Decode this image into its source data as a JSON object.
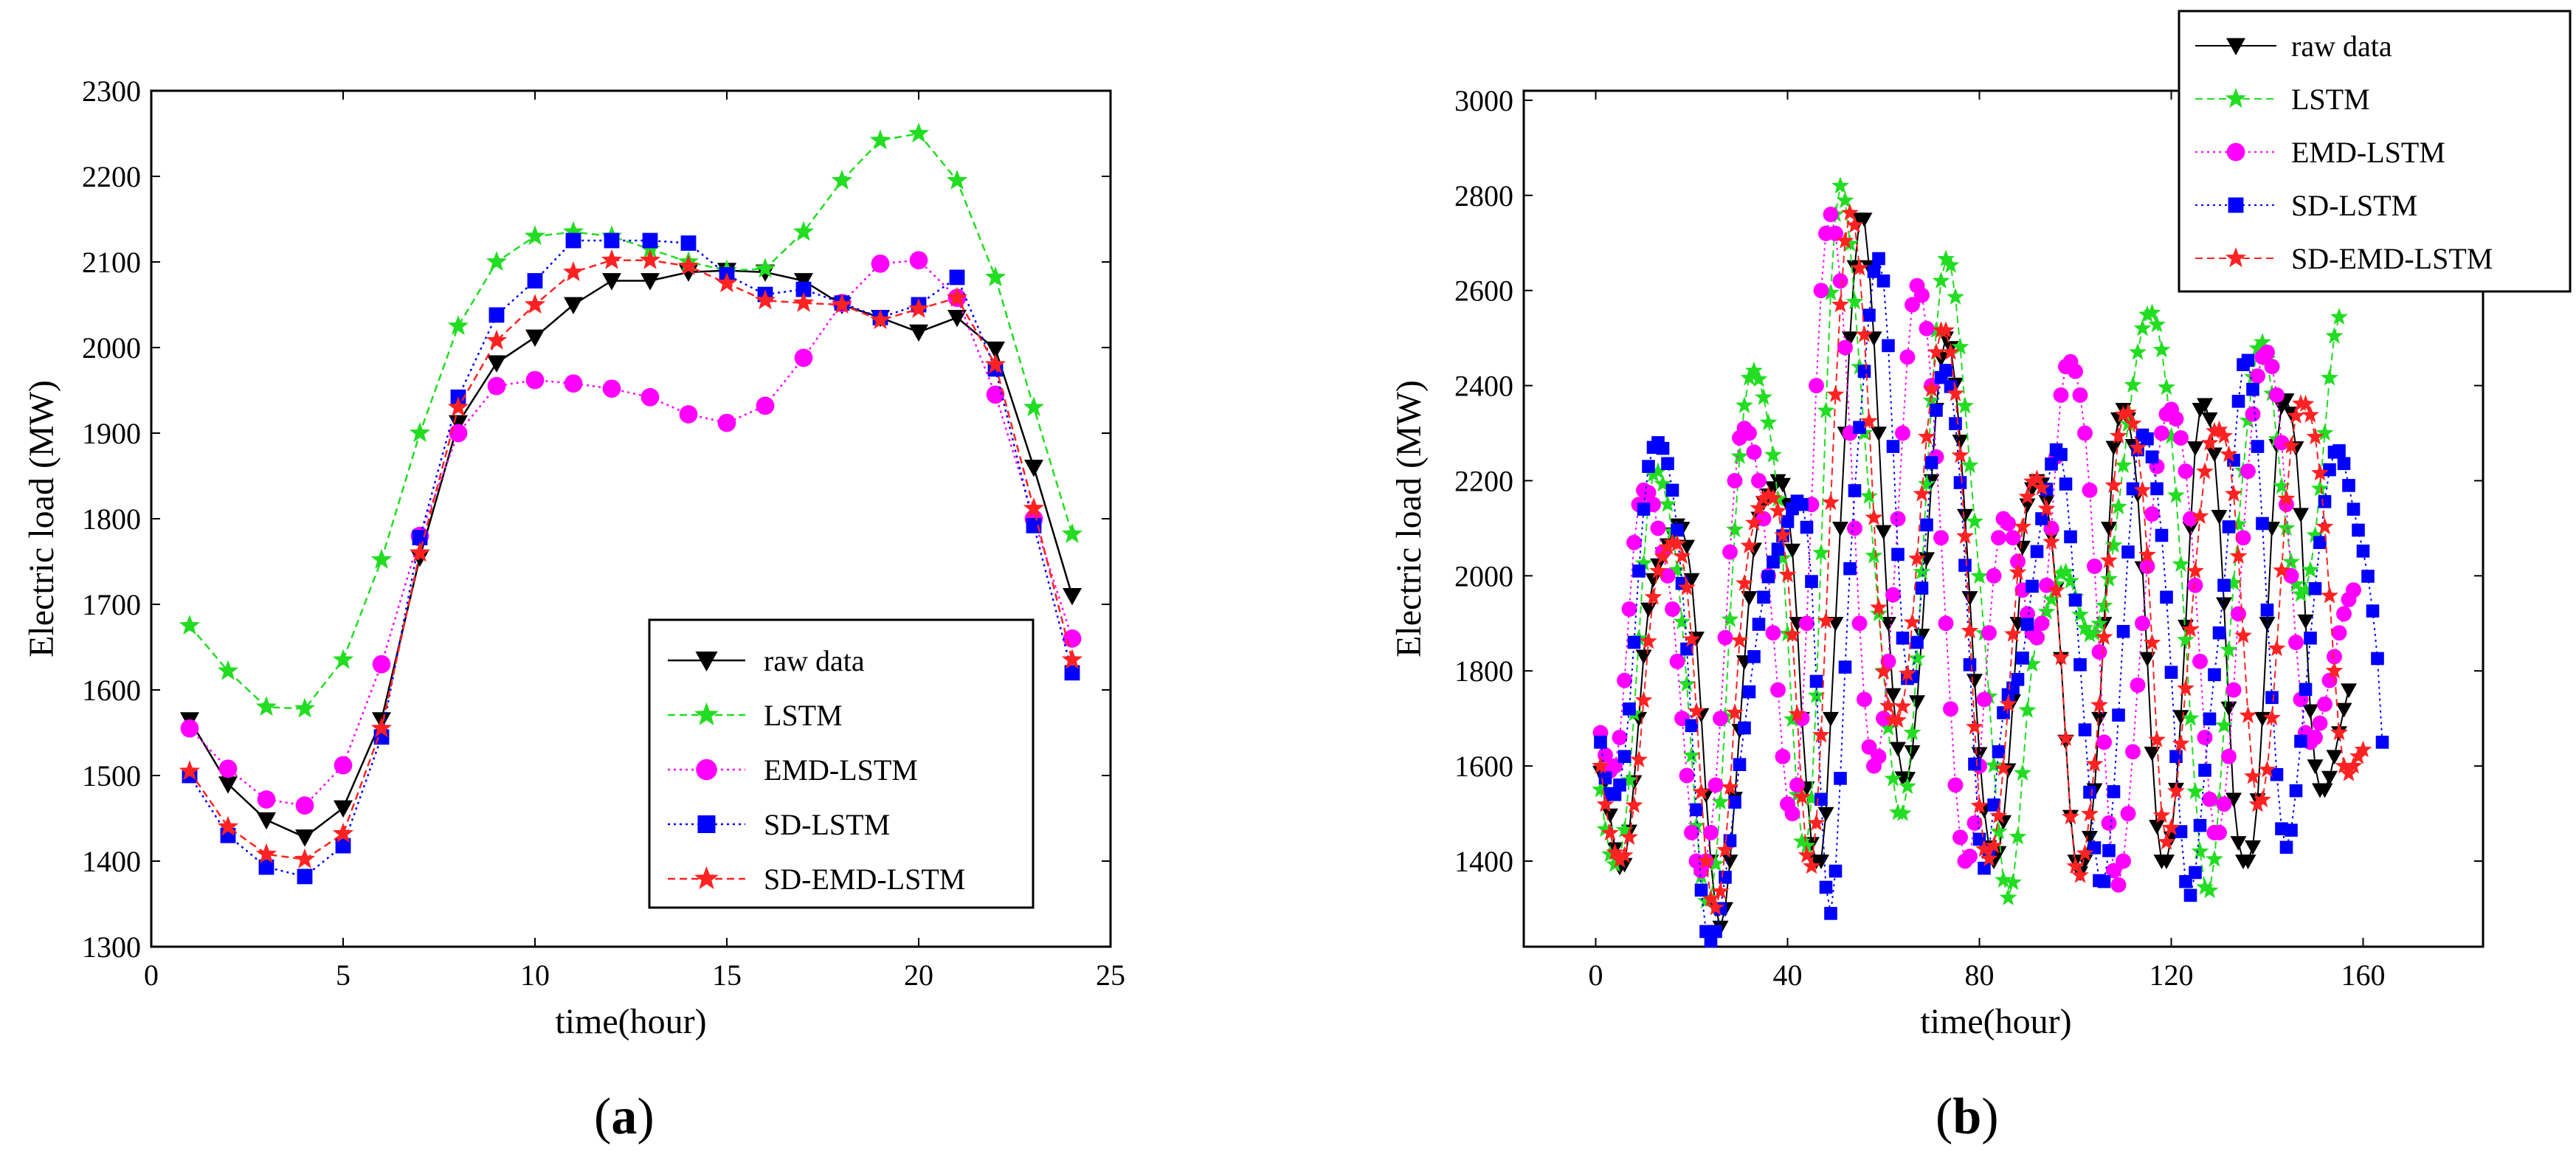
{
  "chart_data": [
    {
      "id": "a",
      "type": "line",
      "panel_label": "(a)",
      "panel_letter": "a",
      "xlabel": "time(hour)",
      "ylabel": "Electric load (MW)",
      "xlim": [
        0,
        25
      ],
      "ylim": [
        1300,
        2300
      ],
      "xticks": [
        0,
        5,
        10,
        15,
        20,
        25
      ],
      "yticks": [
        1300,
        1400,
        1500,
        1600,
        1700,
        1800,
        1900,
        2000,
        2100,
        2200,
        2300
      ],
      "legend_position": "bottom-right",
      "x": [
        1,
        2,
        3,
        4,
        5,
        6,
        7,
        8,
        9,
        10,
        11,
        12,
        13,
        14,
        15,
        16,
        17,
        18,
        19,
        20,
        21,
        22,
        23,
        24
      ],
      "series": [
        {
          "name": "raw data",
          "color": "#000000",
          "marker": "triangle-down",
          "dash": "solid",
          "values": [
            1565,
            1490,
            1448,
            1428,
            1462,
            1565,
            1755,
            1912,
            1982,
            2012,
            2050,
            2078,
            2078,
            2088,
            2090,
            2088,
            2078,
            2050,
            2035,
            2018,
            2035,
            1998,
            1860,
            1710
          ]
        },
        {
          "name": "LSTM",
          "color": "#22dd22",
          "marker": "star",
          "dash": "dashed",
          "values": [
            1675,
            1622,
            1580,
            1578,
            1635,
            1752,
            1900,
            2025,
            2100,
            2130,
            2135,
            2130,
            2115,
            2100,
            2090,
            2092,
            2135,
            2195,
            2242,
            2250,
            2195,
            2082,
            1930,
            1782
          ]
        },
        {
          "name": "EMD-LSTM",
          "color": "#ff00ff",
          "marker": "circle",
          "dash": "dotted",
          "values": [
            1555,
            1508,
            1472,
            1465,
            1512,
            1630,
            1780,
            1900,
            1955,
            1962,
            1958,
            1952,
            1942,
            1922,
            1912,
            1932,
            1988,
            2052,
            2098,
            2102,
            2058,
            1945,
            1800,
            1660
          ]
        },
        {
          "name": "SD-LSTM",
          "color": "#0000ff",
          "marker": "square",
          "dash": "dotted",
          "values": [
            1500,
            1430,
            1393,
            1382,
            1418,
            1545,
            1778,
            1942,
            2038,
            2078,
            2125,
            2125,
            2125,
            2122,
            2085,
            2062,
            2068,
            2052,
            2035,
            2050,
            2082,
            1975,
            1792,
            1620
          ]
        },
        {
          "name": "SD-EMD-LSTM",
          "color": "#ff2222",
          "marker": "star",
          "dash": "dashed",
          "values": [
            1505,
            1440,
            1408,
            1402,
            1432,
            1555,
            1760,
            1930,
            2008,
            2050,
            2088,
            2102,
            2102,
            2095,
            2075,
            2055,
            2052,
            2050,
            2032,
            2045,
            2058,
            1980,
            1812,
            1635
          ]
        }
      ]
    },
    {
      "id": "b",
      "type": "line",
      "panel_label": "(b)",
      "panel_letter": "b",
      "xlabel": "time(hour)",
      "ylabel": "Electric load (MW)",
      "xlim": [
        -15,
        185
      ],
      "ylim": [
        1220,
        3020
      ],
      "xticks": [
        0,
        40,
        80,
        120,
        160
      ],
      "yticks": [
        1400,
        1600,
        1800,
        2000,
        2200,
        2400,
        2600,
        2800,
        3000
      ],
      "legend_position": "top-right",
      "x_start": 1,
      "x_step": 1,
      "series": [
        {
          "name": "raw data",
          "color": "#000000",
          "marker": "triangle-down",
          "dash": "solid",
          "values": [
            1587,
            1567,
            1497,
            1426,
            1387,
            1393,
            1463,
            1567,
            1700,
            1831,
            1930,
            1992,
            2023,
            2046,
            2065,
            2088,
            2107,
            2100,
            2062,
            1992,
            1869,
            1708,
            1539,
            1400,
            1300,
            1261,
            1300,
            1400,
            1532,
            1675,
            1819,
            1954,
            2056,
            2121,
            2154,
            2170,
            2185,
            2200,
            2192,
            2150,
            2054,
            1900,
            1700,
            1554,
            1437,
            1400,
            1400,
            1500,
            1700,
            1900,
            2100,
            2300,
            2500,
            2650,
            2750,
            2750,
            2650,
            2500,
            2300,
            2093,
            1900,
            1750,
            1637,
            1575,
            1574,
            1630,
            1735,
            1875,
            2036,
            2200,
            2350,
            2457,
            2500,
            2480,
            2403,
            2283,
            2127,
            1954,
            1780,
            1626,
            1507,
            1430,
            1400,
            1418,
            1483,
            1592,
            1737,
            1900,
            2060,
            2149,
            2183,
            2200,
            2193,
            2156,
            2083,
            1972,
            1826,
            1652,
            1494,
            1400,
            1375,
            1400,
            1450,
            1550,
            1700,
            1900,
            2100,
            2270,
            2330,
            2350,
            2330,
            2274,
            2171,
            2017,
            1826,
            1627,
            1473,
            1400,
            1400,
            1449,
            1551,
            1704,
            1894,
            2100,
            2269,
            2350,
            2360,
            2330,
            2256,
            2125,
            1941,
            1722,
            1530,
            1439,
            1400,
            1400,
            1430,
            1529,
            1700,
            1900,
            2100,
            2274,
            2356,
            2370,
            2342,
            2269,
            2129,
            1905,
            1716,
            1600,
            1550,
            1550,
            1576,
            1620,
            1670,
            1719,
            1760
          ]
        },
        {
          "name": "LSTM",
          "color": "#22dd22",
          "marker": "star",
          "dash": "dashed",
          "values": [
            1550,
            1467,
            1414,
            1393,
            1403,
            1465,
            1570,
            1710,
            1868,
            2026,
            2156,
            2213,
            2219,
            2193,
            2150,
            2093,
            2012,
            1903,
            1772,
            1622,
            1474,
            1368,
            1316,
            1322,
            1394,
            1524,
            1704,
            1908,
            2097,
            2251,
            2358,
            2416,
            2431,
            2413,
            2375,
            2322,
            2254,
            2161,
            2037,
            1878,
            1698,
            1539,
            1441,
            1432,
            1532,
            1748,
            2048,
            2347,
            2595,
            2760,
            2820,
            2789,
            2698,
            2576,
            2439,
            2300,
            2167,
            2042,
            1920,
            1800,
            1680,
            1573,
            1502,
            1500,
            1557,
            1670,
            1826,
            2008,
            2193,
            2368,
            2516,
            2620,
            2666,
            2653,
            2586,
            2481,
            2357,
            2232,
            2114,
            1999,
            1879,
            1746,
            1601,
            1462,
            1360,
            1323,
            1355,
            1451,
            1585,
            1717,
            1814,
            1870,
            1902,
            1924,
            1950,
            1982,
            2005,
            2008,
            1989,
            1955,
            1918,
            1890,
            1876,
            1879,
            1899,
            1937,
            1993,
            2064,
            2145,
            2232,
            2319,
            2401,
            2470,
            2520,
            2549,
            2553,
            2528,
            2475,
            2396,
            2293,
            2169,
            2024,
            1865,
            1700,
            1546,
            1420,
            1345,
            1338,
            1404,
            1529,
            1685,
            1844,
            1985,
            2108,
            2221,
            2326,
            2418,
            2478,
            2491,
            2456,
            2383,
            2287,
            2188,
            2100,
            2029,
            1982,
            1961,
            1970,
            2012,
            2085,
            2183,
            2300,
            2416,
            2504,
            2544
          ]
        },
        {
          "name": "EMD-LSTM",
          "color": "#ff00ff",
          "marker": "circle",
          "dash": "dotted",
          "values": [
            1670,
            1623,
            1590,
            1600,
            1660,
            1780,
            1930,
            2070,
            2150,
            2180,
            2175,
            2150,
            2100,
            2050,
            2000,
            1930,
            1820,
            1700,
            1580,
            1460,
            1400,
            1380,
            1400,
            1460,
            1560,
            1700,
            1870,
            2050,
            2200,
            2290,
            2310,
            2300,
            2260,
            2200,
            2120,
            2000,
            1880,
            1760,
            1620,
            1520,
            1500,
            1560,
            1700,
            1900,
            2150,
            2400,
            2600,
            2720,
            2760,
            2720,
            2620,
            2480,
            2300,
            2100,
            1900,
            1740,
            1640,
            1600,
            1620,
            1700,
            1820,
            1960,
            2120,
            2300,
            2460,
            2570,
            2610,
            2590,
            2520,
            2400,
            2250,
            2080,
            1900,
            1720,
            1560,
            1450,
            1400,
            1410,
            1480,
            1600,
            1740,
            1880,
            2000,
            2080,
            2120,
            2110,
            2080,
            2030,
            1970,
            1920,
            1880,
            1870,
            1900,
            1980,
            2100,
            2250,
            2380,
            2440,
            2450,
            2430,
            2380,
            2300,
            2180,
            2020,
            1840,
            1650,
            1480,
            1380,
            1350,
            1400,
            1500,
            1630,
            1770,
            1900,
            2020,
            2130,
            2230,
            2300,
            2340,
            2350,
            2330,
            2290,
            2220,
            2120,
            1980,
            1820,
            1660,
            1530,
            1460,
            1460,
            1520,
            1620,
            1760,
            1920,
            2080,
            2220,
            2340,
            2420,
            2460,
            2470,
            2440,
            2380,
            2280,
            2150,
            2000,
            1860,
            1740,
            1670,
            1650,
            1660,
            1690,
            1730,
            1780,
            1830,
            1880,
            1920,
            1950,
            1970
          ]
        },
        {
          "name": "SD-LSTM",
          "color": "#0000ff",
          "marker": "square",
          "dash": "dotted",
          "values": [
            1650,
            1575,
            1542,
            1540,
            1560,
            1620,
            1720,
            1860,
            2010,
            2140,
            2230,
            2270,
            2280,
            2268,
            2236,
            2180,
            2096,
            1984,
            1846,
            1685,
            1508,
            1339,
            1252,
            1232,
            1252,
            1300,
            1366,
            1443,
            1524,
            1603,
            1680,
            1756,
            1830,
            1898,
            1955,
            1998,
            2029,
            2056,
            2084,
            2114,
            2141,
            2157,
            2150,
            2102,
            1988,
            1778,
            1530,
            1345,
            1290,
            1379,
            1574,
            1808,
            2015,
            2179,
            2312,
            2430,
            2548,
            2640,
            2667,
            2620,
            2484,
            2272,
            2045,
            1869,
            1784,
            1788,
            1860,
            1974,
            2107,
            2238,
            2348,
            2417,
            2432,
            2398,
            2320,
            2196,
            2022,
            1813,
            1604,
            1446,
            1385,
            1421,
            1518,
            1630,
            1712,
            1750,
            1764,
            1782,
            1827,
            1898,
            1978,
            2051,
            2120,
            2182,
            2235,
            2265,
            2255,
            2193,
            2082,
            1949,
            1813,
            1676,
            1545,
            1428,
            1359,
            1357,
            1422,
            1546,
            1707,
            1883,
            2050,
            2183,
            2265,
            2296,
            2288,
            2250,
            2183,
            2085,
            1955,
            1797,
            1620,
            1462,
            1357,
            1328,
            1376,
            1475,
            1591,
            1699,
            1792,
            1880,
            1980,
            2103,
            2243,
            2367,
            2444,
            2453,
            2392,
            2272,
            2110,
            1928,
            1744,
            1582,
            1468,
            1429,
            1465,
            1548,
            1652,
            1761,
            1869,
            1973,
            2070,
            2156,
            2223,
            2260,
            2263,
            2236,
            2190,
            2140,
            2096,
            2052,
            1999,
            1926,
            1826,
            1650
          ]
        },
        {
          "name": "SD-EMD-LSTM",
          "color": "#ff2222",
          "marker": "star",
          "dash": "dashed",
          "values": [
            1600,
            1519,
            1459,
            1418,
            1402,
            1412,
            1450,
            1517,
            1613,
            1738,
            1862,
            1955,
            2010,
            2040,
            2060,
            2070,
            2067,
            2041,
            1975,
            1866,
            1715,
            1545,
            1400,
            1320,
            1302,
            1336,
            1423,
            1555,
            1712,
            1864,
            1984,
            2063,
            2111,
            2142,
            2162,
            2170,
            2163,
            2136,
            2085,
            2002,
            1876,
            1709,
            1535,
            1412,
            1389,
            1480,
            1665,
            1905,
            2154,
            2381,
            2570,
            2704,
            2763,
            2737,
            2647,
            2507,
            2325,
            2122,
            1933,
            1798,
            1726,
            1697,
            1696,
            1725,
            1794,
            1902,
            2036,
            2172,
            2292,
            2392,
            2470,
            2516,
            2516,
            2470,
            2383,
            2253,
            2083,
            1884,
            1682,
            1516,
            1425,
            1405,
            1432,
            1495,
            1595,
            1730,
            1877,
            2007,
            2103,
            2166,
            2198,
            2204,
            2185,
            2141,
            2071,
            1969,
            1828,
            1658,
            1493,
            1389,
            1370,
            1416,
            1499,
            1604,
            1728,
            1871,
            2032,
            2190,
            2294,
            2339,
            2343,
            2320,
            2269,
            2180,
            2044,
            1859,
            1655,
            1496,
            1440,
            1470,
            1547,
            1647,
            1763,
            1887,
            2010,
            2125,
            2219,
            2279,
            2304,
            2307,
            2294,
            2255,
            2172,
            2041,
            1874,
            1706,
            1578,
            1519,
            1529,
            1592,
            1701,
            1847,
            2011,
            2162,
            2273,
            2336,
            2362,
            2361,
            2338,
            2292,
            2216,
            2103,
            1958,
            1800,
            1670,
            1600,
            1584,
            1600,
            1620,
            1634
          ]
        }
      ]
    }
  ]
}
